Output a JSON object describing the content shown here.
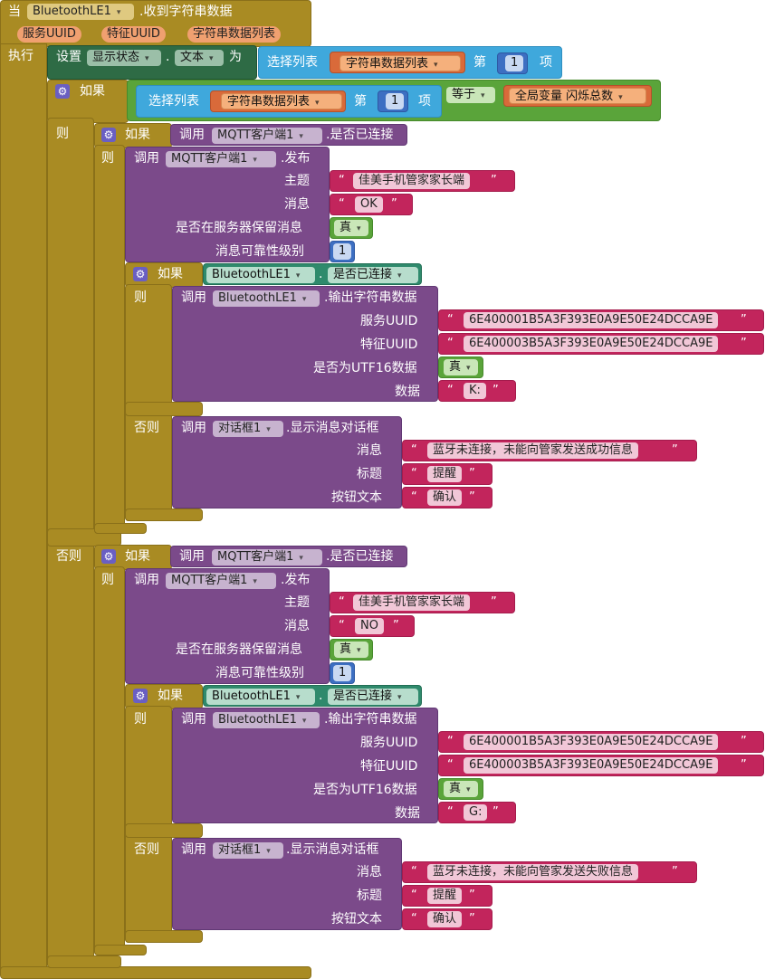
{
  "event": {
    "when": "当",
    "component": "BluetoothLE1",
    "event_name": ".收到字符串数据",
    "params": [
      "服务UUID",
      "特征UUID",
      "字符串数据列表"
    ],
    "do": "执行"
  },
  "set_block": {
    "set": "设置",
    "component": "显示状态",
    "dot": ".",
    "property": "文本",
    "to": "为",
    "select": "选择列表",
    "list_var": "字符串数据列表",
    "index_prefix": "第",
    "index": "1",
    "index_suffix": "项"
  },
  "outer_if": {
    "if": "如果",
    "select": "选择列表",
    "list_var": "字符串数据列表",
    "index_prefix": "第",
    "index": "1",
    "index_suffix": "项",
    "compare_op": "等于",
    "global_var": "全局变量 闪烁总数",
    "then": "则",
    "else": "否则"
  },
  "branches": [
    {
      "if": "如果",
      "call": "调用",
      "mqtt": "MQTT客户端1",
      "is_connected": ".是否已连接",
      "then": "则",
      "publish": {
        "call": "调用",
        "component": "MQTT客户端1",
        "method": ".发布",
        "topic_label": "主题",
        "topic": "佳美手机管家家长端",
        "msg_label": "消息",
        "message": "OK",
        "retain_label": "是否在服务器保留消息",
        "retain": "真",
        "qos_label": "消息可靠性级别",
        "qos": "1"
      },
      "ble_if": {
        "if": "如果",
        "component": "BluetoothLE1",
        "dot": ".",
        "property": "是否已连接",
        "then": "则",
        "else": "否则",
        "write": {
          "call": "调用",
          "component": "BluetoothLE1",
          "method": ".输出字符串数据",
          "service_label": "服务UUID",
          "service": "6E400001B5A3F393E0A9E50E24DCCA9E",
          "char_label": "特征UUID",
          "characteristic": "6E400003B5A3F393E0A9E50E24DCCA9E",
          "utf16_label": "是否为UTF16数据",
          "utf16": "真",
          "data_label": "数据",
          "data": "K:"
        },
        "dialog": {
          "call": "调用",
          "component": "对话框1",
          "method": ".显示消息对话框",
          "msg_label": "消息",
          "message": "蓝牙未连接，未能向管家发送成功信息",
          "title_label": "标题",
          "title": "提醒",
          "button_label": "按钮文本",
          "button": "确认"
        }
      }
    },
    {
      "if": "如果",
      "call": "调用",
      "mqtt": "MQTT客户端1",
      "is_connected": ".是否已连接",
      "then": "则",
      "publish": {
        "call": "调用",
        "component": "MQTT客户端1",
        "method": ".发布",
        "topic_label": "主题",
        "topic": "佳美手机管家家长端",
        "msg_label": "消息",
        "message": "NO",
        "retain_label": "是否在服务器保留消息",
        "retain": "真",
        "qos_label": "消息可靠性级别",
        "qos": "1"
      },
      "ble_if": {
        "if": "如果",
        "component": "BluetoothLE1",
        "dot": ".",
        "property": "是否已连接",
        "then": "则",
        "else": "否则",
        "write": {
          "call": "调用",
          "component": "BluetoothLE1",
          "method": ".输出字符串数据",
          "service_label": "服务UUID",
          "service": "6E400001B5A3F393E0A9E50E24DCCA9E",
          "char_label": "特征UUID",
          "characteristic": "6E400003B5A3F393E0A9E50E24DCCA9E",
          "utf16_label": "是否为UTF16数据",
          "utf16": "真",
          "data_label": "数据",
          "data": "G:"
        },
        "dialog": {
          "call": "调用",
          "component": "对话框1",
          "method": ".显示消息对话框",
          "msg_label": "消息",
          "message": "蓝牙未连接，未能向管家发送失败信息",
          "title_label": "标题",
          "title": "提醒",
          "button_label": "按钮文本",
          "button": "确认"
        }
      }
    }
  ],
  "quote_open": "“",
  "quote_close": "”",
  "gear_icon": "gear-icon",
  "dropdown_icon": "dropdown-caret-icon",
  "colors": {
    "event": "#a98b23",
    "list": "#3fa8dc",
    "setter": "#2e6b45",
    "logic": "#5aa43a",
    "procedure": "#7b4a8a",
    "text": "#c2255c",
    "math": "#3d6fc2",
    "component": "#2f8a6c"
  }
}
